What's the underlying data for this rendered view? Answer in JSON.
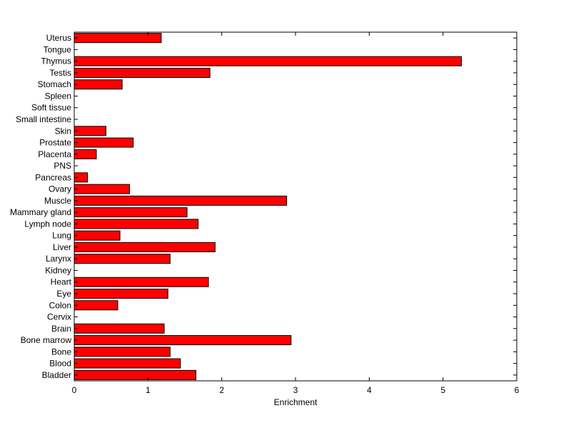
{
  "chart_data": {
    "type": "bar",
    "orientation": "horizontal",
    "title": "",
    "xlabel": "Enrichment",
    "ylabel": "",
    "xlim": [
      0,
      6
    ],
    "xticks": [
      "0",
      "1",
      "2",
      "3",
      "4",
      "5",
      "6"
    ],
    "grid": false,
    "legend": "none",
    "bar_color": "#ff0000",
    "bar_edge_color": "#000000",
    "categories": [
      "Uterus",
      "Tongue",
      "Thymus",
      "Testis",
      "Stomach",
      "Spleen",
      "Soft tissue",
      "Small intestine",
      "Skin",
      "Prostate",
      "Placenta",
      "PNS",
      "Pancreas",
      "Ovary",
      "Muscle",
      "Mammary gland",
      "Lymph node",
      "Lung",
      "Liver",
      "Larynx",
      "Kidney",
      "Heart",
      "Eye",
      "Colon",
      "Cervix",
      "Brain",
      "Bone marrow",
      "Bone",
      "Blood",
      "Bladder"
    ],
    "values": [
      1.18,
      0,
      5.25,
      1.84,
      0.65,
      0,
      0,
      0,
      0.43,
      0.8,
      0.3,
      0,
      0.18,
      0.75,
      2.88,
      1.53,
      1.68,
      0.62,
      1.91,
      1.3,
      0,
      1.82,
      1.27,
      0.59,
      0,
      1.22,
      2.94,
      1.3,
      1.44,
      1.65
    ]
  }
}
